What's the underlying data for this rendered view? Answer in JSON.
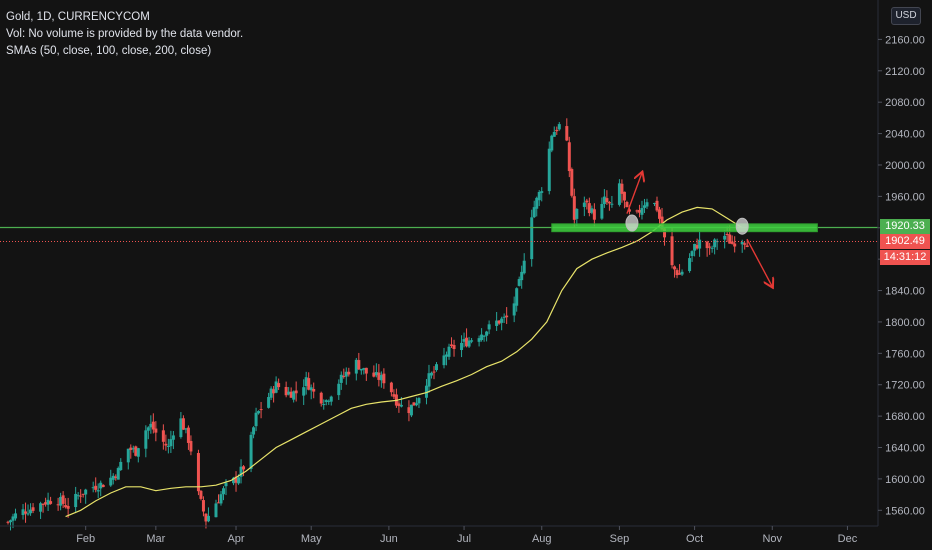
{
  "legend": {
    "symbol": "Gold, 1D, CURRENCYCOM",
    "volume_note": "Vol: No volume is provided by the data vendor.",
    "sma_note": "SMAs (50, close, 100, close, 200, close)"
  },
  "currency_button": "USD",
  "price_labels": {
    "horizontal_line": "1920.33",
    "last_price": "1902.49",
    "countdown": "14:31:12"
  },
  "colors": {
    "background": "#131313",
    "up_candle": "#26a69a",
    "down_candle": "#ef5350",
    "sma": "#e8e36a",
    "horizontal_line": "#4caf50",
    "annotation": "#e53935"
  },
  "chart_data": {
    "type": "candlestick",
    "title": "Gold, 1D, CURRENCYCOM",
    "ylim": [
      1540,
      2200
    ],
    "y_ticks": [
      1560,
      1600,
      1640,
      1680,
      1720,
      1760,
      1800,
      1840,
      1880,
      1920,
      1960,
      2000,
      2040,
      2080,
      2120,
      2160
    ],
    "x_ticks": [
      "Feb",
      "Mar",
      "Apr",
      "May",
      "Jun",
      "Jul",
      "Aug",
      "Sep",
      "Oct",
      "Nov",
      "Dec"
    ],
    "x_range_days": [
      1,
      345
    ],
    "x_tick_days": [
      32,
      60,
      92,
      122,
      153,
      183,
      214,
      245,
      275,
      306,
      336
    ],
    "price_closes": [
      [
        1,
        1545
      ],
      [
        5,
        1557
      ],
      [
        10,
        1562
      ],
      [
        15,
        1570
      ],
      [
        20,
        1575
      ],
      [
        25,
        1565
      ],
      [
        30,
        1582
      ],
      [
        35,
        1590
      ],
      [
        40,
        1595
      ],
      [
        45,
        1610
      ],
      [
        48,
        1640
      ],
      [
        52,
        1635
      ],
      [
        55,
        1660
      ],
      [
        58,
        1668
      ],
      [
        62,
        1650
      ],
      [
        65,
        1640
      ],
      [
        68,
        1672
      ],
      [
        70,
        1675
      ],
      [
        73,
        1650
      ],
      [
        75,
        1625
      ],
      [
        77,
        1580
      ],
      [
        80,
        1548
      ],
      [
        84,
        1570
      ],
      [
        88,
        1590
      ],
      [
        92,
        1600
      ],
      [
        96,
        1620
      ],
      [
        100,
        1680
      ],
      [
        104,
        1700
      ],
      [
        108,
        1720
      ],
      [
        112,
        1710
      ],
      [
        116,
        1710
      ],
      [
        120,
        1725
      ],
      [
        124,
        1705
      ],
      [
        128,
        1700
      ],
      [
        132,
        1720
      ],
      [
        136,
        1735
      ],
      [
        140,
        1748
      ],
      [
        144,
        1735
      ],
      [
        148,
        1730
      ],
      [
        152,
        1725
      ],
      [
        156,
        1700
      ],
      [
        160,
        1685
      ],
      [
        164,
        1700
      ],
      [
        168,
        1725
      ],
      [
        172,
        1740
      ],
      [
        176,
        1760
      ],
      [
        180,
        1770
      ],
      [
        184,
        1775
      ],
      [
        188,
        1782
      ],
      [
        192,
        1790
      ],
      [
        196,
        1800
      ],
      [
        200,
        1805
      ],
      [
        203,
        1825
      ],
      [
        206,
        1860
      ],
      [
        209,
        1930
      ],
      [
        212,
        1955
      ],
      [
        215,
        1980
      ],
      [
        218,
        2040
      ],
      [
        221,
        2050
      ],
      [
        224,
        2025
      ],
      [
        227,
        1930
      ],
      [
        230,
        1960
      ],
      [
        233,
        1945
      ],
      [
        236,
        1930
      ],
      [
        239,
        1955
      ],
      [
        242,
        1945
      ],
      [
        245,
        1975
      ],
      [
        248,
        1940
      ],
      [
        251,
        1930
      ],
      [
        254,
        1948
      ],
      [
        257,
        1960
      ],
      [
        260,
        1945
      ],
      [
        263,
        1905
      ],
      [
        266,
        1870
      ],
      [
        269,
        1860
      ],
      [
        272,
        1875
      ],
      [
        275,
        1895
      ],
      [
        278,
        1905
      ],
      [
        281,
        1890
      ],
      [
        284,
        1905
      ],
      [
        287,
        1910
      ],
      [
        290,
        1900
      ],
      [
        293,
        1908
      ],
      [
        296,
        1902
      ]
    ],
    "sma_50": [
      [
        24,
        1552
      ],
      [
        30,
        1560
      ],
      [
        36,
        1572
      ],
      [
        42,
        1582
      ],
      [
        48,
        1590
      ],
      [
        54,
        1590
      ],
      [
        60,
        1585
      ],
      [
        66,
        1588
      ],
      [
        72,
        1590
      ],
      [
        78,
        1590
      ],
      [
        84,
        1592
      ],
      [
        90,
        1598
      ],
      [
        96,
        1610
      ],
      [
        102,
        1625
      ],
      [
        108,
        1640
      ],
      [
        114,
        1650
      ],
      [
        120,
        1660
      ],
      [
        126,
        1670
      ],
      [
        132,
        1680
      ],
      [
        138,
        1690
      ],
      [
        144,
        1695
      ],
      [
        150,
        1698
      ],
      [
        156,
        1700
      ],
      [
        162,
        1705
      ],
      [
        168,
        1710
      ],
      [
        174,
        1718
      ],
      [
        180,
        1725
      ],
      [
        186,
        1733
      ],
      [
        192,
        1743
      ],
      [
        198,
        1750
      ],
      [
        204,
        1762
      ],
      [
        210,
        1778
      ],
      [
        216,
        1800
      ],
      [
        222,
        1840
      ],
      [
        228,
        1868
      ],
      [
        234,
        1880
      ],
      [
        240,
        1888
      ],
      [
        246,
        1895
      ],
      [
        252,
        1903
      ],
      [
        258,
        1915
      ],
      [
        264,
        1930
      ],
      [
        270,
        1940
      ],
      [
        276,
        1946
      ],
      [
        282,
        1944
      ],
      [
        288,
        1932
      ],
      [
        294,
        1920
      ]
    ],
    "horizontal_line": 1920.33,
    "last_price": 1902.49,
    "support_zone": {
      "x": [
        218,
        324
      ],
      "y": [
        1915,
        1925
      ]
    },
    "annotations": [
      {
        "type": "arrow-up",
        "from": [
          248,
          1938
        ],
        "to": [
          254,
          1990
        ]
      },
      {
        "type": "arrow-down",
        "from": [
          296,
          1905
        ],
        "to": [
          306,
          1845
        ]
      },
      {
        "type": "marker",
        "at": [
          250,
          1926
        ]
      },
      {
        "type": "marker",
        "at": [
          294,
          1922
        ]
      }
    ]
  }
}
